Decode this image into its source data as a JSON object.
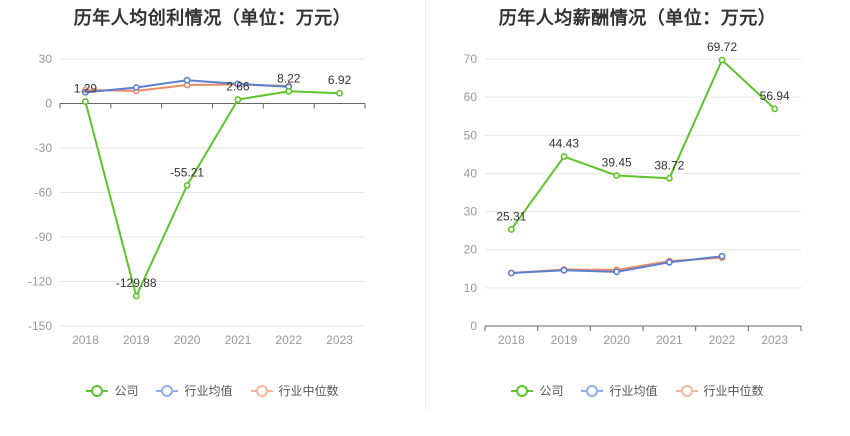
{
  "chart_data": [
    {
      "type": "line",
      "title": "历年人均创利情况（单位：万元）",
      "categories": [
        "2018",
        "2019",
        "2020",
        "2021",
        "2022",
        "2023"
      ],
      "ylim": [
        -150,
        30
      ],
      "yticks": [
        30,
        0,
        -30,
        -60,
        -90,
        -120,
        -150
      ],
      "series": [
        {
          "name": "公司",
          "color": "#5ec42b",
          "values": [
            1.29,
            -129.88,
            -55.21,
            2.66,
            8.22,
            6.92
          ],
          "labels": [
            "1.29",
            "-129.88",
            "-55.21",
            "2.66",
            "8.22",
            "6.92"
          ]
        },
        {
          "name": "行业均值",
          "color": "#5b7fd1",
          "values": [
            7.5,
            10.8,
            15.7,
            13.2,
            11.3,
            null
          ]
        },
        {
          "name": "行业中位数",
          "color": "#ee8a65",
          "values": [
            9.0,
            8.5,
            12.5,
            12.8,
            11.8,
            null
          ]
        }
      ]
    },
    {
      "type": "line",
      "title": "历年人均薪酬情况（单位：万元）",
      "categories": [
        "2018",
        "2019",
        "2020",
        "2021",
        "2022",
        "2023"
      ],
      "ylim": [
        0,
        70
      ],
      "yticks": [
        70,
        60,
        50,
        40,
        30,
        20,
        10,
        0
      ],
      "series": [
        {
          "name": "公司",
          "color": "#5ec42b",
          "values": [
            25.31,
            44.43,
            39.45,
            38.72,
            69.72,
            56.94
          ],
          "labels": [
            "25.31",
            "44.43",
            "39.45",
            "38.72",
            "69.72",
            "56.94"
          ]
        },
        {
          "name": "行业均值",
          "color": "#5b7fd1",
          "values": [
            13.9,
            14.6,
            14.2,
            16.7,
            18.3,
            null
          ]
        },
        {
          "name": "行业中位数",
          "color": "#ee8a65",
          "values": [
            13.9,
            14.8,
            14.7,
            17.0,
            17.9,
            null
          ]
        }
      ]
    }
  ],
  "legend": [
    {
      "name": "公司",
      "color": "#5ec42b"
    },
    {
      "name": "行业均值",
      "color": "#8fb0ec"
    },
    {
      "name": "行业中位数",
      "color": "#f5b79f"
    }
  ]
}
